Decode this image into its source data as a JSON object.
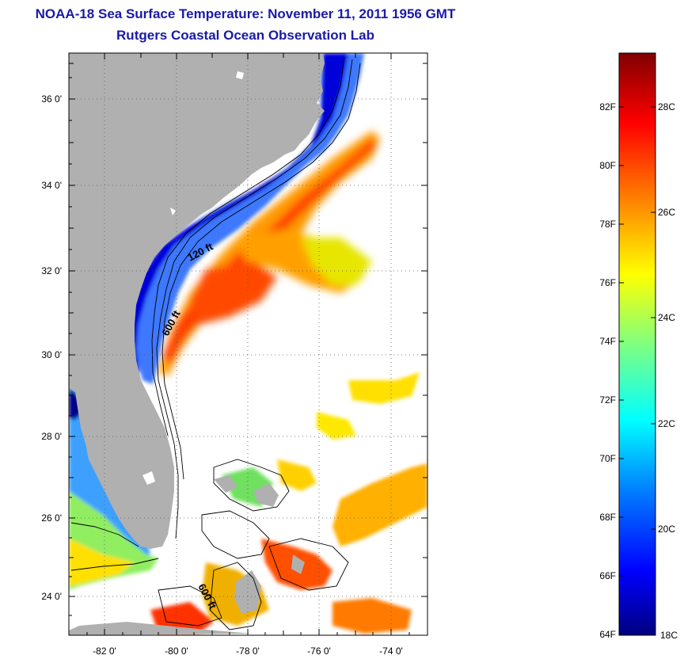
{
  "header": {
    "title": "NOAA-18 Sea Surface Temperature:  November 11, 2011 1956 GMT",
    "subtitle": "Rutgers Coastal Ocean Observation Lab"
  },
  "map": {
    "lat_labels": [
      "36 0'",
      "34 0'",
      "32 0'",
      "30 0'",
      "28 0'",
      "26 0'",
      "24 0'"
    ],
    "lon_labels": [
      "-82 0'",
      "-80 0'",
      "-78 0'",
      "-76 0'",
      "-74 0'"
    ],
    "lat_range": [
      23,
      37
    ],
    "lon_range": [
      -83,
      -73
    ],
    "contour_labels": [
      "120 ft",
      "600 ft",
      "600 ft"
    ],
    "land_color": "#b0b0b0",
    "no_data_color": "#ffffff"
  },
  "colorbar": {
    "f_labels": [
      "82F",
      "80F",
      "78F",
      "76F",
      "74F",
      "72F",
      "70F",
      "68F",
      "66F",
      "64F"
    ],
    "c_labels": [
      "28C",
      "26C",
      "24C",
      "22C",
      "20C",
      "18C"
    ],
    "colormap": [
      "#000080",
      "#0000ff",
      "#0080ff",
      "#00ffff",
      "#80ff80",
      "#ffff00",
      "#ff8000",
      "#ff0000",
      "#800000"
    ]
  }
}
